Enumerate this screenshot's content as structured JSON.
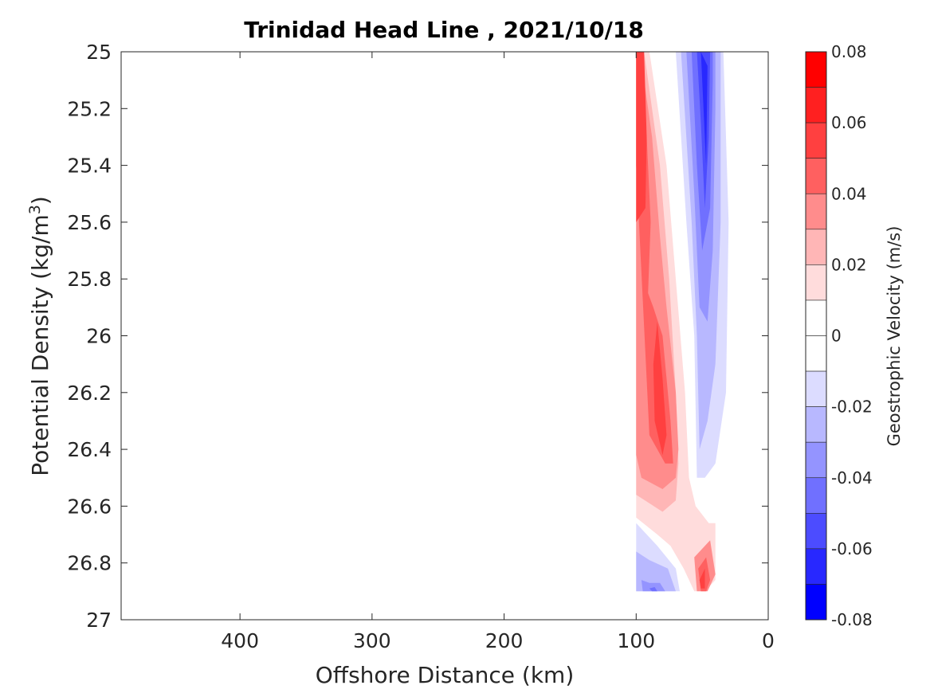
{
  "chart_data": {
    "type": "heatmap",
    "title": "Trinidad Head Line , 2021/10/18",
    "xlabel": "Offshore Distance (km)",
    "ylabel_main": "Potential Density (kg/m",
    "ylabel_sup": "3",
    "ylabel_close": ")",
    "colorbar_label": "Geostrophic Velocity (m/s)",
    "x_axis": {
      "range": [
        490,
        0
      ],
      "reversed": true,
      "ticks": [
        400,
        300,
        200,
        100,
        0
      ],
      "tick_labels": [
        "400",
        "300",
        "200",
        "100",
        "0"
      ]
    },
    "y_axis": {
      "range": [
        25,
        27
      ],
      "reversed": true,
      "ticks": [
        25,
        25.2,
        25.4,
        25.6,
        25.8,
        26,
        26.2,
        26.4,
        26.6,
        26.8,
        27
      ],
      "tick_labels": [
        "25",
        "25.2",
        "25.4",
        "25.6",
        "25.8",
        "26",
        "26.2",
        "26.4",
        "26.6",
        "26.8",
        "27"
      ]
    },
    "colorbar": {
      "range": [
        -0.08,
        0.08
      ],
      "tick_values": [
        0.08,
        0.06,
        0.04,
        0.02,
        0,
        -0.02,
        -0.04,
        -0.06,
        -0.08
      ],
      "tick_labels": [
        "0.08",
        "0.06",
        "0.04",
        "0.02",
        "0",
        "-0.02",
        "-0.04",
        "-0.06",
        "-0.08"
      ],
      "levels": [
        {
          "from": 0.07,
          "to": 0.08,
          "color": "#ff0000"
        },
        {
          "from": 0.06,
          "to": 0.07,
          "color": "#ff2020"
        },
        {
          "from": 0.05,
          "to": 0.06,
          "color": "#ff4040"
        },
        {
          "from": 0.04,
          "to": 0.05,
          "color": "#ff6060"
        },
        {
          "from": 0.03,
          "to": 0.04,
          "color": "#ff8c8c"
        },
        {
          "from": 0.02,
          "to": 0.03,
          "color": "#ffb6b6"
        },
        {
          "from": 0.01,
          "to": 0.02,
          "color": "#ffdcdc"
        },
        {
          "from": 0.0,
          "to": 0.01,
          "color": "#ffffff"
        },
        {
          "from": -0.01,
          "to": 0.0,
          "color": "#ffffff"
        },
        {
          "from": -0.02,
          "to": -0.01,
          "color": "#dcdcff"
        },
        {
          "from": -0.03,
          "to": -0.02,
          "color": "#b8b8ff"
        },
        {
          "from": -0.04,
          "to": -0.03,
          "color": "#9494ff"
        },
        {
          "from": -0.05,
          "to": -0.04,
          "color": "#7070ff"
        },
        {
          "from": -0.06,
          "to": -0.05,
          "color": "#4c4cff"
        },
        {
          "from": -0.07,
          "to": -0.06,
          "color": "#2828ff"
        },
        {
          "from": -0.08,
          "to": -0.07,
          "color": "#0000ff"
        }
      ]
    },
    "data_extent": {
      "x": [
        100,
        30
      ],
      "y": [
        25,
        26.9
      ]
    },
    "regions": [
      {
        "name": "neg-lower-left",
        "value": -0.01,
        "color": "#dcdcff",
        "pts": [
          [
            100,
            26.46
          ],
          [
            100,
            26.9
          ],
          [
            67,
            26.9
          ],
          [
            70,
            26.82
          ],
          [
            84,
            26.74
          ],
          [
            100,
            26.66
          ]
        ]
      },
      {
        "name": "neg-lower-mid",
        "value": -0.02,
        "color": "#b8b8ff",
        "pts": [
          [
            100,
            26.76
          ],
          [
            100,
            26.9
          ],
          [
            70,
            26.9
          ],
          [
            76,
            26.82
          ],
          [
            90,
            26.79
          ]
        ]
      },
      {
        "name": "neg-lower-core",
        "value": -0.03,
        "color": "#9494ff",
        "pts": [
          [
            96,
            26.86
          ],
          [
            95,
            26.9
          ],
          [
            78,
            26.9
          ],
          [
            82,
            26.87
          ],
          [
            90,
            26.87
          ]
        ]
      },
      {
        "name": "neg-lower-inner",
        "value": -0.04,
        "color": "#7070ff",
        "pts": [
          [
            90,
            26.89
          ],
          [
            88,
            26.9
          ],
          [
            84,
            26.9
          ],
          [
            86,
            26.885
          ]
        ]
      },
      {
        "name": "pos-level1",
        "value": 0.01,
        "color": "#ffdcdc",
        "pts": [
          [
            90,
            25
          ],
          [
            77,
            25.4
          ],
          [
            70,
            25.8
          ],
          [
            63,
            26.2
          ],
          [
            60,
            26.5
          ],
          [
            55,
            26.6
          ],
          [
            45,
            26.66
          ],
          [
            40,
            26.66
          ],
          [
            40,
            26.86
          ],
          [
            48,
            26.9
          ],
          [
            56,
            26.9
          ],
          [
            64,
            26.82
          ],
          [
            74,
            26.74
          ],
          [
            84,
            26.7
          ],
          [
            100,
            26.64
          ],
          [
            100,
            25
          ]
        ]
      },
      {
        "name": "pos-level2",
        "value": 0.02,
        "color": "#ffb6b6",
        "pts": [
          [
            94,
            25
          ],
          [
            82,
            25.4
          ],
          [
            75,
            25.8
          ],
          [
            70,
            26.2
          ],
          [
            68,
            26.45
          ],
          [
            70,
            26.58
          ],
          [
            80,
            26.62
          ],
          [
            100,
            26.56
          ],
          [
            100,
            25
          ]
        ]
      },
      {
        "name": "pos-level3",
        "value": 0.03,
        "color": "#ff8c8c",
        "pts": [
          [
            97,
            25
          ],
          [
            88,
            25.3
          ],
          [
            82,
            25.65
          ],
          [
            77,
            25.9
          ],
          [
            70,
            26.2
          ],
          [
            68,
            26.4
          ],
          [
            70,
            26.5
          ],
          [
            80,
            26.54
          ],
          [
            96,
            26.5
          ],
          [
            100,
            26.42
          ],
          [
            100,
            25
          ]
        ]
      },
      {
        "name": "pos-level4",
        "value": 0.04,
        "color": "#ff6060",
        "pts": [
          [
            99,
            25
          ],
          [
            92,
            25.3
          ],
          [
            89,
            25.6
          ],
          [
            91,
            25.85
          ],
          [
            87,
            25.9
          ],
          [
            80,
            26.0
          ],
          [
            74,
            26.3
          ],
          [
            72,
            26.45
          ],
          [
            78,
            26.45
          ],
          [
            90,
            26.35
          ],
          [
            100,
            25.4
          ],
          [
            100,
            25
          ]
        ]
      },
      {
        "name": "pos-level5",
        "value": 0.05,
        "color": "#ff4040",
        "pts": [
          [
            100,
            25
          ],
          [
            94,
            25
          ],
          [
            92,
            25.3
          ],
          [
            93,
            25.55
          ],
          [
            100,
            25.6
          ],
          [
            100,
            25.3
          ]
        ]
      },
      {
        "name": "pos-level5b",
        "value": 0.05,
        "color": "#ff4040",
        "pts": [
          [
            84,
            25.95
          ],
          [
            80,
            26.15
          ],
          [
            77,
            26.35
          ],
          [
            80,
            26.42
          ],
          [
            86,
            26.3
          ],
          [
            87,
            26.1
          ]
        ]
      },
      {
        "name": "pos-lower-l3",
        "value": 0.03,
        "color": "#ff8c8c",
        "pts": [
          [
            44,
            26.72
          ],
          [
            56,
            26.78
          ],
          [
            54,
            26.9
          ],
          [
            46,
            26.9
          ],
          [
            40,
            26.84
          ]
        ]
      },
      {
        "name": "pos-lower-l4",
        "value": 0.04,
        "color": "#ff6060",
        "pts": [
          [
            47,
            26.78
          ],
          [
            53,
            26.82
          ],
          [
            51,
            26.9
          ],
          [
            47,
            26.9
          ],
          [
            44,
            26.86
          ]
        ]
      },
      {
        "name": "pos-lower-l5",
        "value": 0.05,
        "color": "#ff4040",
        "pts": [
          [
            48,
            26.82
          ],
          [
            52,
            26.86
          ],
          [
            51,
            26.89
          ],
          [
            48,
            26.89
          ]
        ]
      },
      {
        "name": "neg-upper-l1",
        "value": -0.01,
        "color": "#dcdcff",
        "pts": [
          [
            70,
            25
          ],
          [
            62,
            25.6
          ],
          [
            56,
            26.0
          ],
          [
            54,
            26.5
          ],
          [
            48,
            26.5
          ],
          [
            40,
            26.45
          ],
          [
            32,
            26.2
          ],
          [
            30,
            25.6
          ],
          [
            34,
            25
          ]
        ]
      },
      {
        "name": "neg-upper-l2",
        "value": -0.02,
        "color": "#b8b8ff",
        "pts": [
          [
            66,
            25
          ],
          [
            58,
            25.6
          ],
          [
            54,
            26.0
          ],
          [
            52,
            26.4
          ],
          [
            46,
            26.3
          ],
          [
            40,
            26.1
          ],
          [
            36,
            25.6
          ],
          [
            36,
            25
          ]
        ]
      },
      {
        "name": "neg-upper-l3",
        "value": -0.03,
        "color": "#9494ff",
        "pts": [
          [
            62,
            25
          ],
          [
            56,
            25.5
          ],
          [
            52,
            25.9
          ],
          [
            46,
            25.95
          ],
          [
            42,
            25.7
          ],
          [
            40,
            25.2
          ],
          [
            40,
            25
          ]
        ]
      },
      {
        "name": "neg-upper-l4",
        "value": -0.04,
        "color": "#7070ff",
        "pts": [
          [
            58,
            25
          ],
          [
            54,
            25.4
          ],
          [
            50,
            25.7
          ],
          [
            44,
            25.55
          ],
          [
            42,
            25.1
          ],
          [
            42,
            25
          ]
        ]
      },
      {
        "name": "neg-upper-l5",
        "value": -0.05,
        "color": "#4c4cff",
        "pts": [
          [
            54,
            25
          ],
          [
            51,
            25.25
          ],
          [
            48,
            25.55
          ],
          [
            45,
            25.3
          ],
          [
            44,
            25
          ]
        ]
      },
      {
        "name": "neg-upper-l6",
        "value": -0.06,
        "color": "#2828ff",
        "pts": [
          [
            51,
            25
          ],
          [
            49,
            25.2
          ],
          [
            47,
            25.4
          ],
          [
            46,
            25.05
          ]
        ]
      }
    ]
  }
}
